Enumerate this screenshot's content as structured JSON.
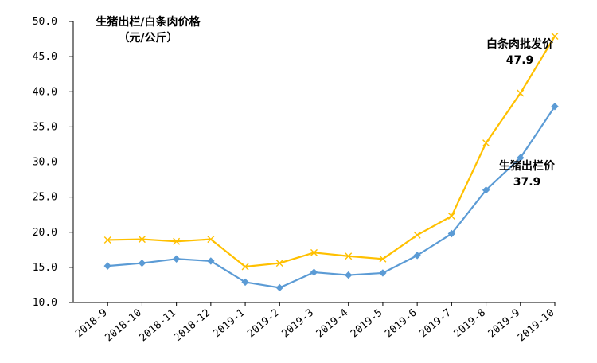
{
  "chart_data": {
    "type": "line",
    "title": "生猪出栏/白条肉价格",
    "subtitle": "（元/公斤）",
    "categories": [
      "2018-9",
      "2018-10",
      "2018-11",
      "2018-12",
      "2019-1",
      "2019-2",
      "2019-3",
      "2019-4",
      "2019-5",
      "2019-6",
      "2019-7",
      "2019-8",
      "2019-9",
      "2019-10"
    ],
    "series": [
      {
        "name": "生猪出栏价",
        "color": "#5B9BD5",
        "marker": "diamond",
        "values": [
          15.2,
          15.6,
          16.2,
          15.9,
          12.9,
          12.1,
          14.3,
          13.9,
          14.2,
          16.7,
          19.8,
          26.0,
          30.6,
          37.9
        ]
      },
      {
        "name": "白条肉批发价",
        "color": "#FFC000",
        "marker": "x",
        "values": [
          18.9,
          19.0,
          18.7,
          19.0,
          15.1,
          15.6,
          17.1,
          16.6,
          16.2,
          19.6,
          22.3,
          32.7,
          39.8,
          47.9
        ]
      }
    ],
    "ylim": [
      10,
      50
    ],
    "yticks": [
      "10.0",
      "15.0",
      "20.0",
      "25.0",
      "30.0",
      "35.0",
      "40.0",
      "45.0",
      "50.0"
    ],
    "grid": false,
    "annotations": [
      {
        "label": "白条肉批发价",
        "value": "47.9"
      },
      {
        "label": "生猪出栏价",
        "value": "37.9"
      }
    ]
  }
}
